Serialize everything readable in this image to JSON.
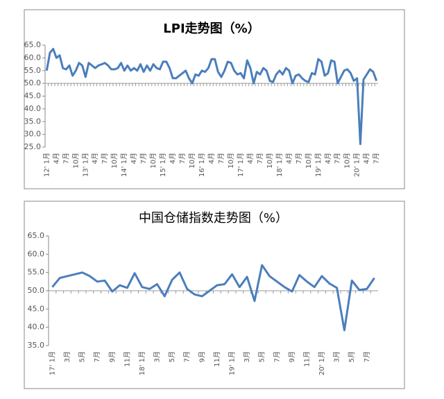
{
  "chart_data": [
    {
      "type": "line",
      "title": "LPI走势图（%）",
      "color": "#4a7ebb",
      "axis_crosses": 50,
      "ylim": [
        25,
        65
      ],
      "yticks": [
        {
          "value": 25,
          "label": "25.0"
        },
        {
          "value": 30,
          "label": "30.0"
        },
        {
          "value": 35,
          "label": "35.0"
        },
        {
          "value": 40,
          "label": "40.0"
        },
        {
          "value": 45,
          "label": "45.0"
        },
        {
          "value": 50,
          "label": "50.0"
        },
        {
          "value": 55,
          "label": "55.0"
        },
        {
          "value": 60,
          "label": "60.0"
        },
        {
          "value": 65,
          "label": "65.0"
        }
      ],
      "categories": [
        "12' 1月",
        null,
        null,
        "4月",
        null,
        null,
        "7月",
        null,
        null,
        "10月",
        null,
        null,
        "13' 1月",
        null,
        null,
        "4月",
        null,
        null,
        "7月",
        null,
        null,
        "10月",
        null,
        null,
        "14' 1月",
        null,
        null,
        "4月",
        null,
        null,
        "7月",
        null,
        null,
        "10月",
        null,
        null,
        "15' 1月",
        null,
        null,
        "4月",
        null,
        null,
        "7月",
        null,
        null,
        "10月",
        null,
        null,
        "16' 1月",
        null,
        null,
        "4月",
        null,
        null,
        "7月",
        null,
        null,
        "10月",
        null,
        null,
        "17' 1月",
        null,
        null,
        "4月",
        null,
        null,
        "7月",
        null,
        null,
        "10月",
        null,
        null,
        "18' 1月",
        null,
        null,
        "4月",
        null,
        null,
        "7月",
        null,
        null,
        "10月",
        null,
        null,
        "19' 1月",
        null,
        null,
        "4月",
        null,
        null,
        "7月",
        null,
        null,
        "10月",
        null,
        null,
        "20' 1月",
        null,
        null,
        "4月",
        null,
        null,
        "7月"
      ],
      "values": [
        55,
        62,
        63.5,
        60,
        61,
        56,
        55.5,
        57,
        53,
        55,
        58,
        57,
        52.5,
        58,
        57,
        56,
        57,
        57.5,
        58,
        57,
        55.5,
        55.5,
        56,
        58,
        55,
        57,
        55,
        56,
        55,
        57.5,
        54.5,
        57,
        55,
        57.5,
        56,
        55.5,
        58.5,
        58.5,
        56,
        52,
        52,
        53,
        54,
        55,
        52,
        50,
        53.5,
        53,
        55,
        54.5,
        56,
        59.5,
        59.5,
        54.5,
        52.5,
        55,
        58.5,
        58,
        55,
        53.5,
        54,
        52,
        59,
        56,
        50,
        54.5,
        53.5,
        56,
        55,
        51,
        50.5,
        53.5,
        55,
        53.5,
        56,
        55,
        50,
        53,
        53.5,
        52,
        51,
        50.5,
        54,
        53.5,
        59.5,
        58.5,
        53,
        54,
        59,
        58.5,
        50,
        52.5,
        55,
        55.5,
        54,
        51,
        52,
        26.2,
        51.5,
        53.5,
        55.5,
        54.5,
        51
      ]
    },
    {
      "type": "line",
      "title": "中国仓储指数走势图（%）",
      "color": "#4a7ebb",
      "axis_crosses": 50,
      "ylim": [
        35,
        65
      ],
      "yticks": [
        {
          "value": 35,
          "label": "35.0"
        },
        {
          "value": 40,
          "label": "40.0"
        },
        {
          "value": 45,
          "label": "45.0"
        },
        {
          "value": 50,
          "label": "50.0"
        },
        {
          "value": 55,
          "label": "55.0"
        },
        {
          "value": 60,
          "label": "60.0"
        },
        {
          "value": 65,
          "label": "65.0"
        }
      ],
      "categories": [
        "17' 1月",
        null,
        "3月",
        null,
        "5月",
        null,
        "7月",
        null,
        "9月",
        null,
        "11月",
        null,
        "18' 1月",
        null,
        "3月",
        null,
        "5月",
        null,
        "7月",
        null,
        "9月",
        null,
        "11月",
        null,
        "19' 1月",
        null,
        "3月",
        null,
        "5月",
        null,
        "7月",
        null,
        "9月",
        null,
        "11月",
        null,
        "20' 1月",
        null,
        "3月",
        null,
        "5月",
        null,
        "7月",
        null
      ],
      "values": [
        51,
        53.5,
        54,
        54.5,
        55,
        54,
        52.5,
        52.8,
        49.8,
        51.5,
        50.8,
        54.8,
        51,
        50.5,
        51.8,
        48.5,
        53,
        55,
        50.5,
        49,
        48.5,
        50,
        51.5,
        51.8,
        54.5,
        51,
        53.8,
        47.2,
        57,
        54,
        52.5,
        51,
        49.8,
        54.3,
        52.5,
        51,
        54,
        52,
        50.8,
        39.2,
        52.8,
        50.2,
        50.5,
        53.5
      ]
    }
  ]
}
